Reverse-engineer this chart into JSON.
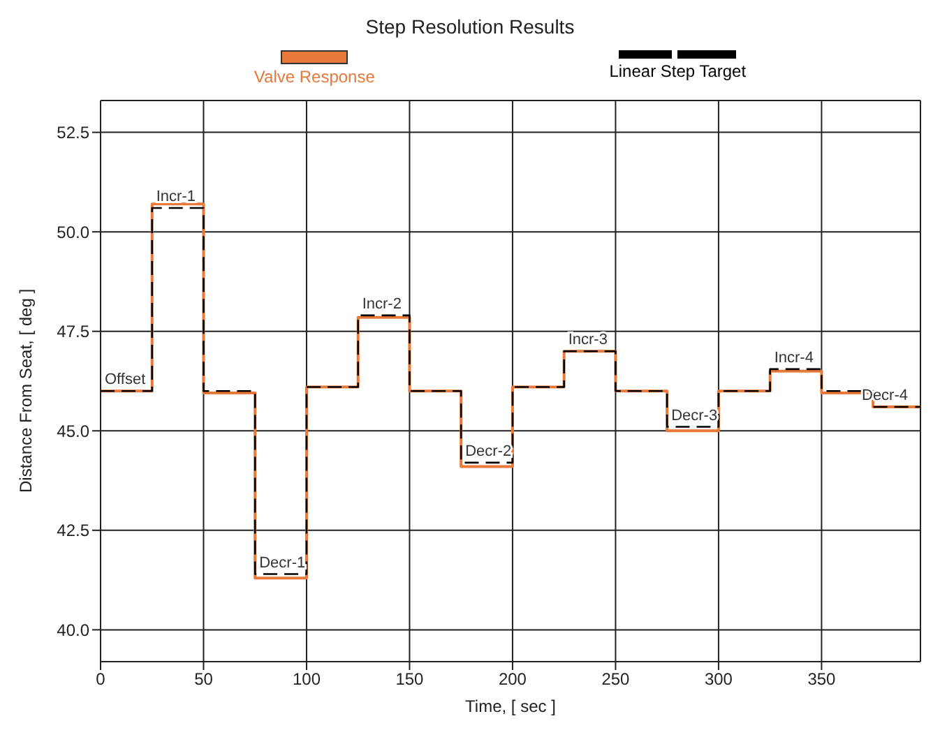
{
  "chart_data": {
    "type": "step",
    "title": "Step Resolution Results",
    "xlabel": "Time, [ sec ]",
    "ylabel": "Distance From Seat, [ deg ]",
    "xlim": [
      0,
      398
    ],
    "xticks": [
      0,
      50,
      100,
      150,
      200,
      250,
      300,
      350
    ],
    "ylim": [
      39.2,
      53.3
    ],
    "yticks": [
      {
        "value": 40,
        "label": "40.0"
      },
      {
        "value": 42.5,
        "label": "42.5"
      },
      {
        "value": 45,
        "label": "45.0"
      },
      {
        "value": 47.5,
        "label": "47.5"
      },
      {
        "value": 50,
        "label": "50.0"
      },
      {
        "value": 52.5,
        "label": "52.5"
      }
    ],
    "grid": true,
    "legend": "top",
    "marker": "none",
    "series": [
      {
        "name": "Valve Response",
        "color": "#e8793a",
        "line_style": "solid",
        "x": [
          0,
          25,
          50,
          75,
          100,
          125,
          150,
          175,
          200,
          225,
          250,
          275,
          300,
          325,
          350,
          375,
          398
        ],
        "values": [
          46.0,
          50.7,
          45.95,
          41.3,
          46.1,
          47.85,
          46.0,
          44.1,
          46.1,
          47.0,
          46.0,
          45.0,
          46.0,
          46.5,
          45.95,
          45.6,
          45.6
        ]
      },
      {
        "name": "Linear Step Target",
        "color": "#000000",
        "line_style": "dashed",
        "x": [
          0,
          25,
          50,
          75,
          100,
          125,
          150,
          175,
          200,
          225,
          250,
          275,
          300,
          325,
          350,
          375,
          398
        ],
        "values": [
          46.0,
          50.6,
          46.0,
          41.4,
          46.1,
          47.9,
          46.0,
          44.2,
          46.1,
          47.0,
          46.0,
          45.1,
          46.0,
          46.55,
          46.0,
          45.6,
          45.6
        ]
      }
    ],
    "annotations": [
      {
        "text": "Offset",
        "x": 0,
        "y": 46.0
      },
      {
        "text": "Incr-1",
        "x": 25,
        "y": 50.6
      },
      {
        "text": "Decr-1",
        "x": 75,
        "y": 41.4
      },
      {
        "text": "Incr-2",
        "x": 125,
        "y": 47.9
      },
      {
        "text": "Decr-2",
        "x": 175,
        "y": 44.2
      },
      {
        "text": "Incr-3",
        "x": 225,
        "y": 47.0
      },
      {
        "text": "Decr-3",
        "x": 275,
        "y": 45.1
      },
      {
        "text": "Incr-4",
        "x": 325,
        "y": 46.55
      },
      {
        "text": "Decr-4",
        "x": 375,
        "y": 45.6
      }
    ]
  }
}
